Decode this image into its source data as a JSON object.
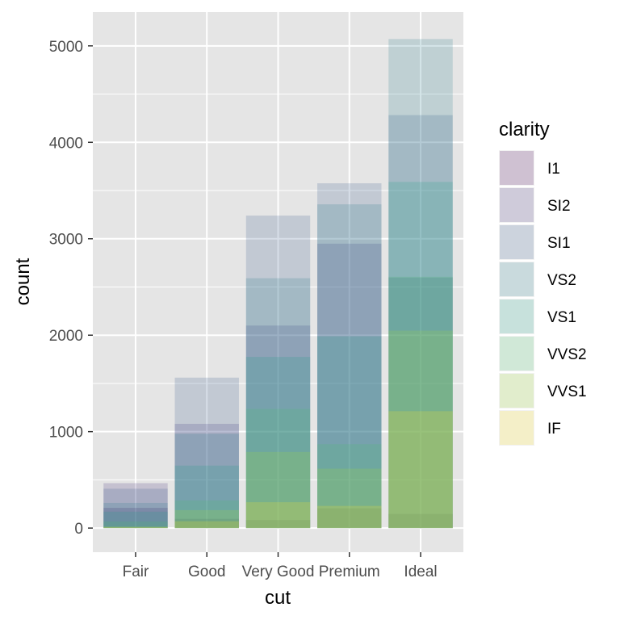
{
  "chart_data": {
    "type": "bar",
    "stacked": false,
    "overlay_alpha": 0.2,
    "xlabel": "cut",
    "ylabel": "count",
    "categories": [
      "Fair",
      "Good",
      "Very Good",
      "Premium",
      "Ideal"
    ],
    "ylim": [
      -250,
      5350
    ],
    "yticks": [
      0,
      1000,
      2000,
      3000,
      4000,
      5000
    ],
    "ytick_labels": [
      "0",
      "1000",
      "2000",
      "3000",
      "4000",
      "5000"
    ],
    "grid": true,
    "panel_background": "#e5e5e5",
    "legend": {
      "title": "clarity",
      "position": "right"
    },
    "series": [
      {
        "name": "I1",
        "color": "#440154",
        "values": [
          210,
          96,
          84,
          205,
          146
        ]
      },
      {
        "name": "SI2",
        "color": "#46337e",
        "values": [
          466,
          1081,
          2100,
          2949,
          2598
        ]
      },
      {
        "name": "SI1",
        "color": "#365c8d",
        "values": [
          408,
          1560,
          3240,
          3575,
          4282
        ]
      },
      {
        "name": "VS2",
        "color": "#277f8e",
        "values": [
          261,
          978,
          2591,
          3357,
          5071
        ]
      },
      {
        "name": "VS1",
        "color": "#1fa187",
        "values": [
          170,
          648,
          1775,
          1989,
          3589
        ]
      },
      {
        "name": "VVS2",
        "color": "#4ac16d",
        "values": [
          69,
          286,
          1235,
          870,
          2606
        ]
      },
      {
        "name": "VVS1",
        "color": "#a0da39",
        "values": [
          17,
          186,
          789,
          616,
          2047
        ]
      },
      {
        "name": "IF",
        "color": "#fde725",
        "values": [
          9,
          71,
          268,
          230,
          1212
        ]
      }
    ]
  }
}
